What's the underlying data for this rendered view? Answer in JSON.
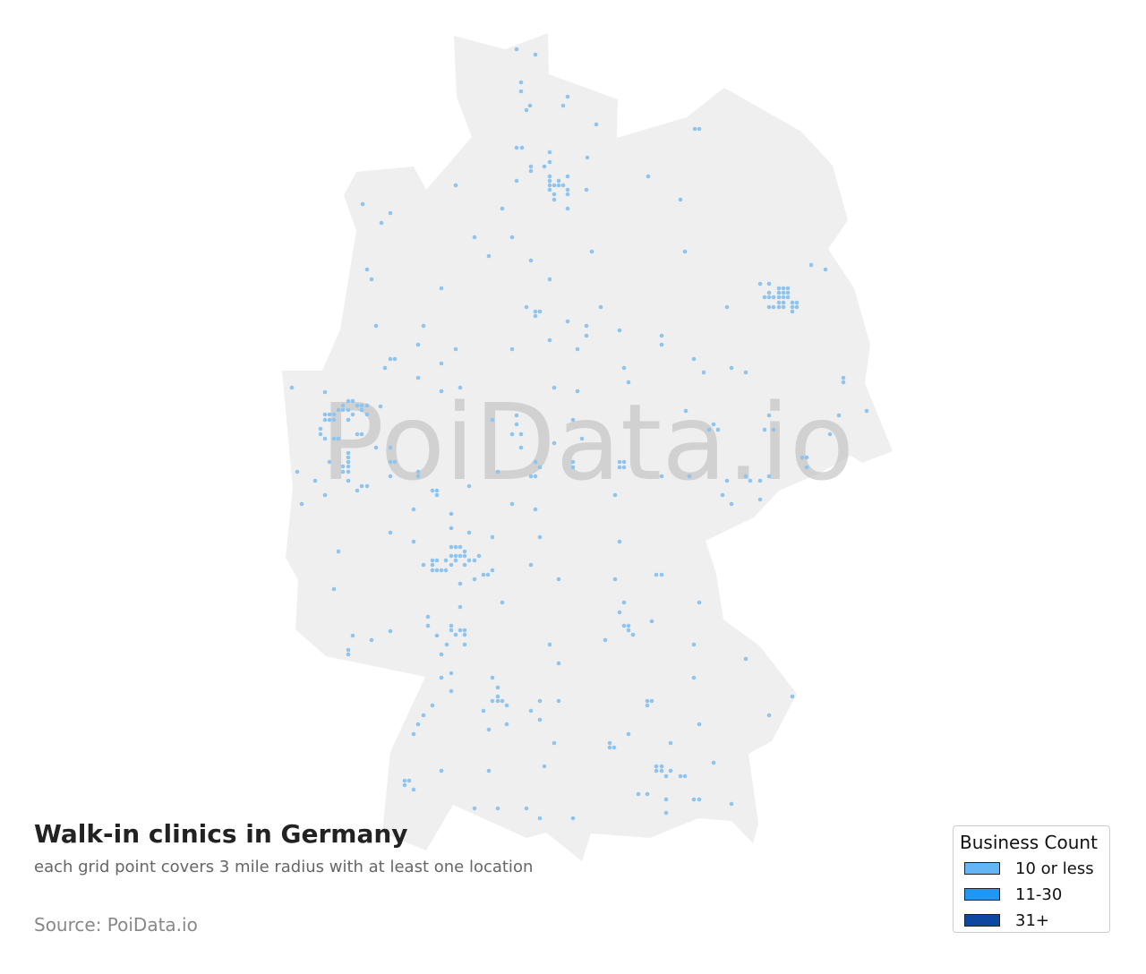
{
  "map": {
    "region": "Germany",
    "land_color": "#efefef",
    "point_color": "#8ec5f0",
    "watermark": "PoiData.io"
  },
  "title": "Walk-in clinics in Germany",
  "subtitle": "each grid point covers 3 mile radius with at least one location",
  "source": "Source: PoiData.io",
  "legend": {
    "title": "Business Count",
    "items": [
      {
        "label": "10 or less",
        "color": "#64b5f6"
      },
      {
        "label": "11-30",
        "color": "#2196f3"
      },
      {
        "label": "31+",
        "color": "#0d47a1"
      }
    ]
  }
}
